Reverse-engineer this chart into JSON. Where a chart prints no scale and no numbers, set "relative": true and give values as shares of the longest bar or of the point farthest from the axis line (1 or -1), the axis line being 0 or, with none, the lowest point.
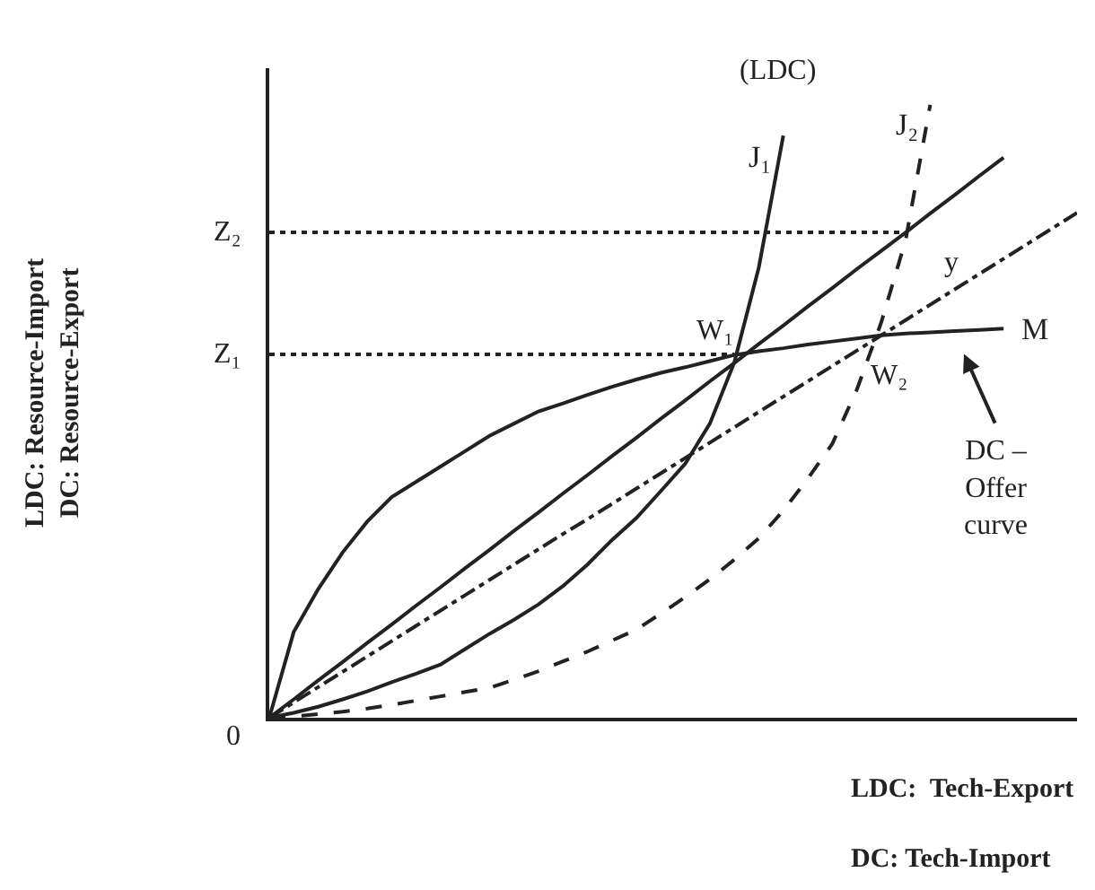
{
  "chart_data": {
    "type": "line",
    "relative": true,
    "xlabel": "LDC:  Tech-Export\nDC: Tech-Import",
    "categories": [
      null,
      null,
      null,
      null,
      null,
      null,
      null,
      null,
      null,
      null,
      null,
      null,
      null,
      null,
      null,
      null,
      null,
      null,
      null,
      null,
      null,
      null,
      null,
      null,
      null,
      null,
      null,
      null,
      null,
      null,
      null,
      null,
      null,
      null
    ],
    "series": [
      {
        "name": "J₁",
        "color": "#222222",
        "line_style": "solid",
        "values": [
          0,
          0.008,
          0.018,
          0.03,
          0.043,
          0.058,
          0.072,
          0.087,
          0.112,
          0.137,
          0.16,
          0.185,
          0.215,
          0.25,
          0.29,
          0.326,
          0.37,
          0.415,
          0.48,
          0.58,
          0.735,
          0.95,
          null,
          null,
          null,
          null,
          null,
          null,
          null,
          null,
          null,
          null,
          null,
          null
        ]
      },
      {
        "name": "J₂",
        "color": "#222222",
        "line_style": "dashed",
        "values": [
          0,
          0.002,
          0.006,
          0.01,
          0.015,
          0.021,
          0.028,
          0.035,
          0.042,
          0.049,
          0.062,
          0.076,
          0.092,
          0.108,
          0.126,
          0.144,
          0.17,
          0.197,
          0.226,
          0.258,
          0.293,
          0.338,
          0.39,
          0.447,
          0.535,
          0.645,
          0.78,
          1.0,
          null,
          null,
          null,
          null,
          null,
          null
        ]
      },
      {
        "name": "M",
        "color": "#222222",
        "line_style": "solid",
        "values": [
          0,
          0.14,
          0.21,
          0.27,
          0.32,
          0.36,
          0.385,
          0.41,
          0.435,
          0.46,
          0.48,
          0.5,
          0.513,
          0.527,
          0.54,
          0.552,
          0.563,
          0.572,
          0.582,
          0.592,
          0.598,
          0.603,
          0.609,
          0.614,
          0.619,
          0.624,
          0.627,
          0.629,
          0.631,
          0.633,
          0.635,
          null,
          null,
          null
        ]
      },
      {
        "color": "#222222",
        "line_style": "solid",
        "values": [
          0,
          0.03,
          0.061,
          0.091,
          0.122,
          0.152,
          0.183,
          0.213,
          0.244,
          0.274,
          0.305,
          0.335,
          0.366,
          0.396,
          0.427,
          0.457,
          0.488,
          0.518,
          0.549,
          0.579,
          0.61,
          0.64,
          0.671,
          0.701,
          0.732,
          0.762,
          0.792,
          0.823,
          0.853,
          0.884,
          0.914,
          null,
          null,
          null
        ]
      },
      {
        "color": "#222222",
        "line_style": "dashdot",
        "values": [
          0,
          0.025,
          0.05,
          0.075,
          0.1,
          0.125,
          0.15,
          0.175,
          0.2,
          0.225,
          0.25,
          0.275,
          0.3,
          0.324,
          0.349,
          0.374,
          0.399,
          0.424,
          0.449,
          0.474,
          0.499,
          0.524,
          0.549,
          0.574,
          0.599,
          0.624,
          0.649,
          0.674,
          0.699,
          0.724,
          0.749,
          0.774,
          0.799,
          0.824
        ]
      },
      {
        "color": "#222222",
        "line_style": "dotted",
        "values": [
          0.593,
          0.593,
          0.593,
          0.593,
          0.593,
          0.593,
          0.593,
          0.593,
          0.593,
          0.593,
          0.593,
          0.593,
          0.593,
          0.593,
          0.593,
          0.593,
          0.593,
          0.593,
          0.593,
          0.593,
          null,
          null,
          null,
          null,
          null,
          null,
          null,
          null,
          null,
          null,
          null,
          null,
          null,
          null
        ]
      },
      {
        "color": "#222222",
        "line_style": "dotted",
        "values": [
          0.792,
          0.792,
          0.792,
          0.792,
          0.792,
          0.792,
          0.792,
          0.792,
          0.792,
          0.792,
          0.792,
          0.792,
          0.792,
          0.792,
          0.792,
          0.792,
          0.792,
          0.792,
          0.792,
          0.792,
          0.792,
          0.792,
          0.792,
          0.792,
          0.792,
          0.792,
          0.792,
          null,
          null,
          null,
          null,
          null,
          null,
          null
        ]
      }
    ],
    "annotations": [
      "0",
      "Z₁",
      "Z₂",
      "(LDC)",
      "W₁",
      "W₂",
      "y",
      "DC –\nOffer\ncurve",
      "LDC: Resource-Import\nDC: Resource-Export"
    ]
  }
}
